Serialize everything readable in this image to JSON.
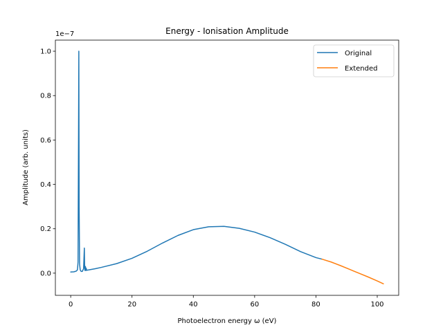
{
  "chart_data": {
    "type": "line",
    "title": "Energy - Ionisation Amplitude",
    "xlabel": "Photoelectron energy ω (eV)",
    "ylabel": "Amplitude (arb. units)",
    "y_scale_label": "1e−7",
    "xlim": [
      -5,
      107
    ],
    "ylim": [
      -0.1,
      1.05
    ],
    "x_ticks": [
      0,
      20,
      40,
      60,
      80,
      100
    ],
    "x_tick_labels": [
      "0",
      "20",
      "40",
      "60",
      "80",
      "100"
    ],
    "y_ticks": [
      0.0,
      0.2,
      0.4,
      0.6,
      0.8,
      1.0
    ],
    "y_tick_labels": [
      "0.0",
      "0.2",
      "0.4",
      "0.6",
      "0.8",
      "1.0"
    ],
    "grid": false,
    "legend_position": "top-right",
    "series": [
      {
        "name": "Original",
        "color": "#1f77b4",
        "x": [
          0,
          1,
          1.8,
          2.2,
          2.4,
          2.55,
          2.65,
          2.75,
          2.9,
          3.1,
          3.4,
          3.8,
          4.2,
          4.45,
          4.55,
          4.65,
          4.8,
          4.95,
          5.05,
          5.2,
          6,
          8,
          10,
          15,
          20,
          25,
          30,
          35,
          40,
          45,
          50,
          55,
          60,
          65,
          70,
          75,
          80,
          82
        ],
        "y": [
          0.005,
          0.006,
          0.009,
          0.015,
          0.05,
          0.6,
          1.0,
          0.3,
          0.04,
          0.015,
          0.008,
          0.008,
          0.02,
          0.113,
          0.025,
          0.012,
          0.03,
          0.012,
          0.022,
          0.013,
          0.015,
          0.02,
          0.026,
          0.043,
          0.067,
          0.099,
          0.136,
          0.17,
          0.196,
          0.209,
          0.211,
          0.202,
          0.185,
          0.16,
          0.13,
          0.097,
          0.07,
          0.063
        ]
      },
      {
        "name": "Extended",
        "color": "#ff7f0e",
        "x": [
          82,
          85,
          88,
          91,
          94,
          97,
          100,
          102
        ],
        "y": [
          0.063,
          0.05,
          0.034,
          0.017,
          0.0,
          -0.017,
          -0.035,
          -0.048
        ]
      }
    ]
  }
}
